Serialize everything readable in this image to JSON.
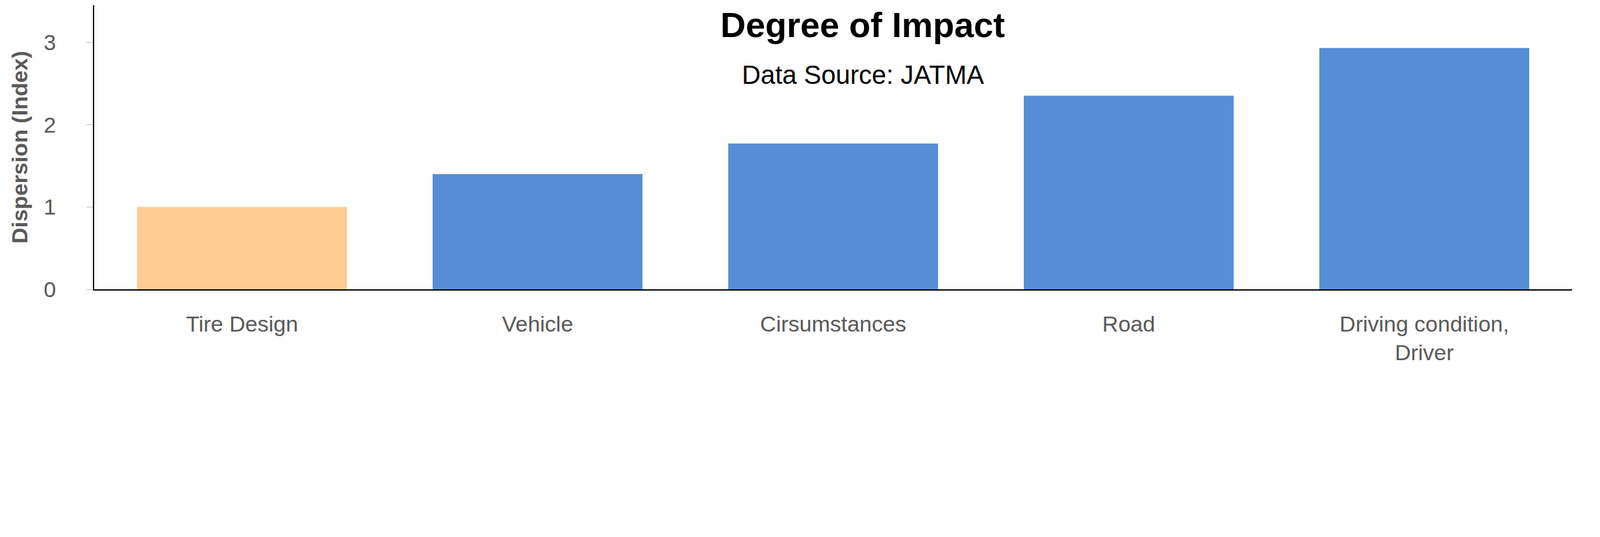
{
  "chart_data": {
    "type": "bar",
    "title": "Degree of Impact",
    "subtitle": "Data Source: JATMA",
    "y_label": "Dispersion (Index)",
    "categories": [
      "Tire Design",
      "Vehicle",
      "Cirsumstances",
      "Road",
      "Driving condition, Driver"
    ],
    "values": [
      1.0,
      1.4,
      1.77,
      2.35,
      2.93
    ],
    "colors": [
      "#FDCC92",
      "#558ED5",
      "#558ED5",
      "#558ED5",
      "#558ED5"
    ],
    "ylim": [
      0,
      3.45
    ],
    "yticks": [
      0,
      1,
      2,
      3
    ],
    "grid": false
  }
}
